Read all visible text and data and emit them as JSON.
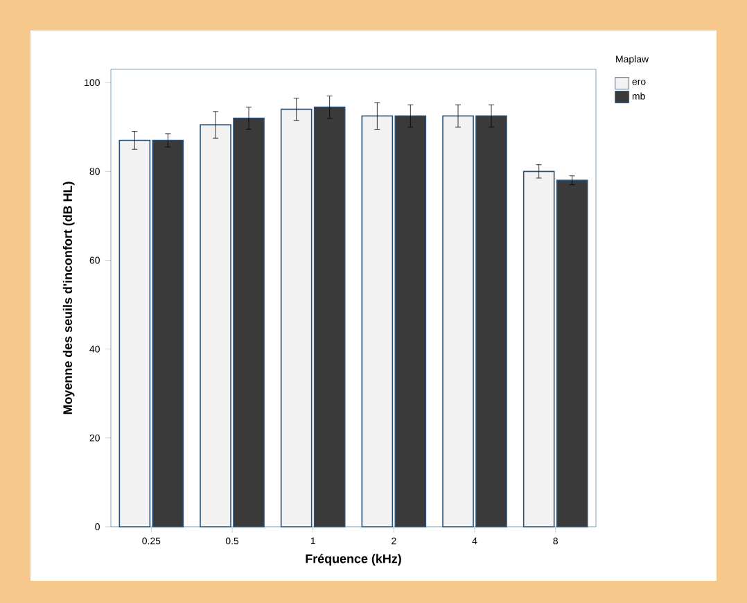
{
  "chart_data": {
    "type": "bar",
    "xlabel": "Fréquence (kHz)",
    "ylabel": "Moyenne des seuils d'inconfort (dB HL)",
    "legend_title": "Maplaw",
    "categories": [
      "0.25",
      "0.5",
      "1",
      "2",
      "4",
      "8"
    ],
    "series": [
      {
        "name": "ero",
        "color": "#f2f2f2",
        "values": [
          87,
          90.5,
          94,
          92.5,
          92.5,
          80
        ],
        "errors": [
          2,
          3,
          2.5,
          3,
          2.5,
          1.5
        ]
      },
      {
        "name": "mb",
        "color": "#3a3a3a",
        "values": [
          87,
          92,
          94.5,
          92.5,
          92.5,
          78
        ],
        "errors": [
          1.5,
          2.5,
          2.5,
          2.5,
          2.5,
          1
        ]
      }
    ],
    "ylim": [
      0,
      103
    ],
    "yticks": [
      0,
      20,
      40,
      60,
      80,
      100
    ],
    "legend": "top right"
  }
}
